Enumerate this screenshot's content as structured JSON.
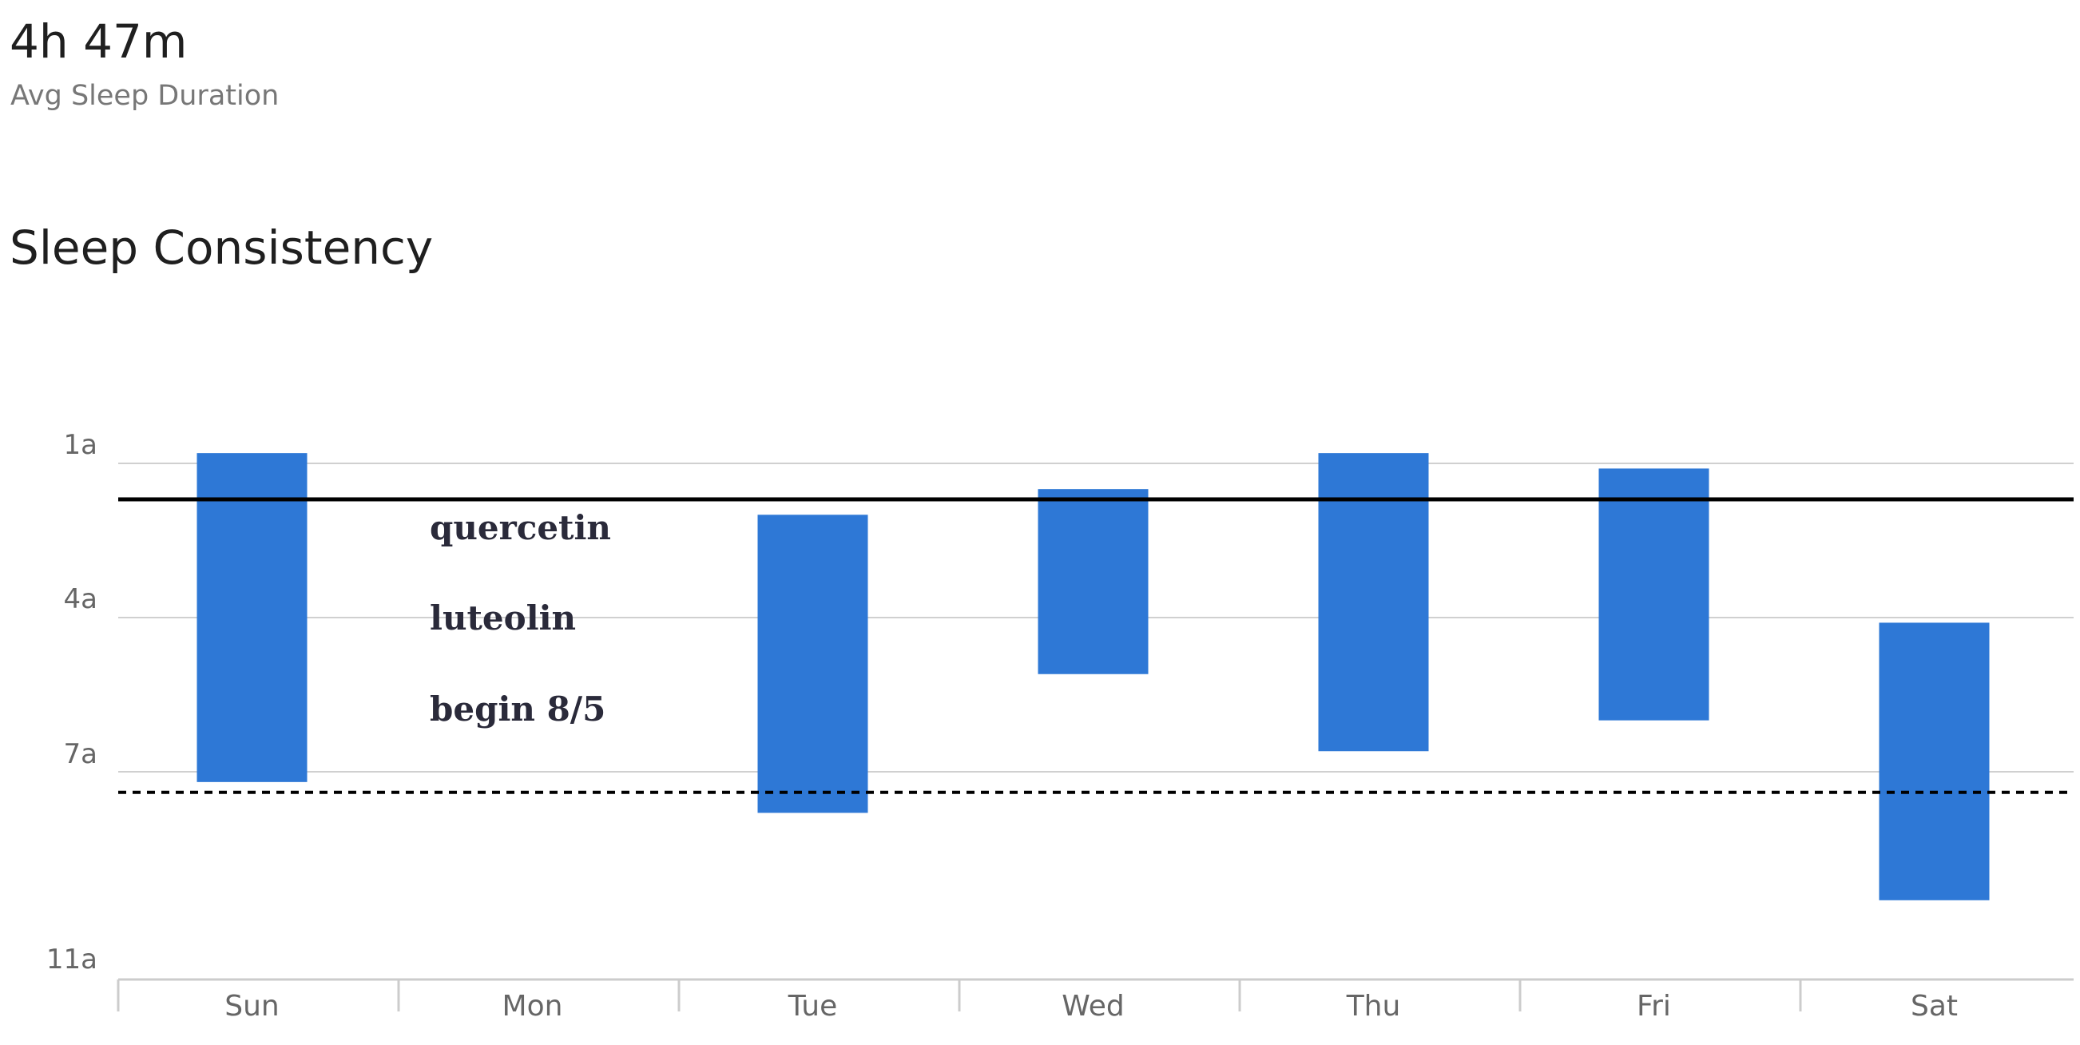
{
  "summary": {
    "avg_sleep_value": "4h 47m",
    "avg_sleep_label": "Avg Sleep Duration"
  },
  "section_title": "Sleep Consistency",
  "colors": {
    "bar": "#2e78d6",
    "grid": "#d0d0d0",
    "reference_line": "#000000",
    "axis": "#cccccc"
  },
  "chart_data": {
    "type": "bar",
    "subtype": "floating-range",
    "categories": [
      "Sun",
      "Mon",
      "Tue",
      "Wed",
      "Thu",
      "Fri",
      "Sat"
    ],
    "y_axis": {
      "ticks": [
        {
          "label": "1a",
          "hours_after_midnight": 1
        },
        {
          "label": "4a",
          "hours_after_midnight": 4
        },
        {
          "label": "7a",
          "hours_after_midnight": 7
        },
        {
          "label": "11a",
          "hours_after_midnight": 11
        }
      ],
      "range_hours_after_midnight": [
        1,
        11
      ],
      "inverted": true
    },
    "series": [
      {
        "ranges": [
          {
            "day": "Sun",
            "start": 0.8,
            "end": 7.2
          },
          {
            "day": "Mon",
            "start": null,
            "end": null
          },
          {
            "day": "Tue",
            "start": 2.0,
            "end": 7.8
          },
          {
            "day": "Wed",
            "start": 1.5,
            "end": 5.1
          },
          {
            "day": "Thu",
            "start": 0.8,
            "end": 6.6
          },
          {
            "day": "Fri",
            "start": 1.1,
            "end": 6.0
          },
          {
            "day": "Sat",
            "start": 4.1,
            "end": 9.5
          }
        ]
      }
    ],
    "reference_lines": [
      {
        "style": "solid",
        "hours_after_midnight": 1.7
      },
      {
        "style": "dashed",
        "hours_after_midnight": 7.4
      }
    ],
    "annotations": [
      "quercetin",
      "luteolin",
      "begin 8/5"
    ],
    "grid": true,
    "legend": "none"
  }
}
